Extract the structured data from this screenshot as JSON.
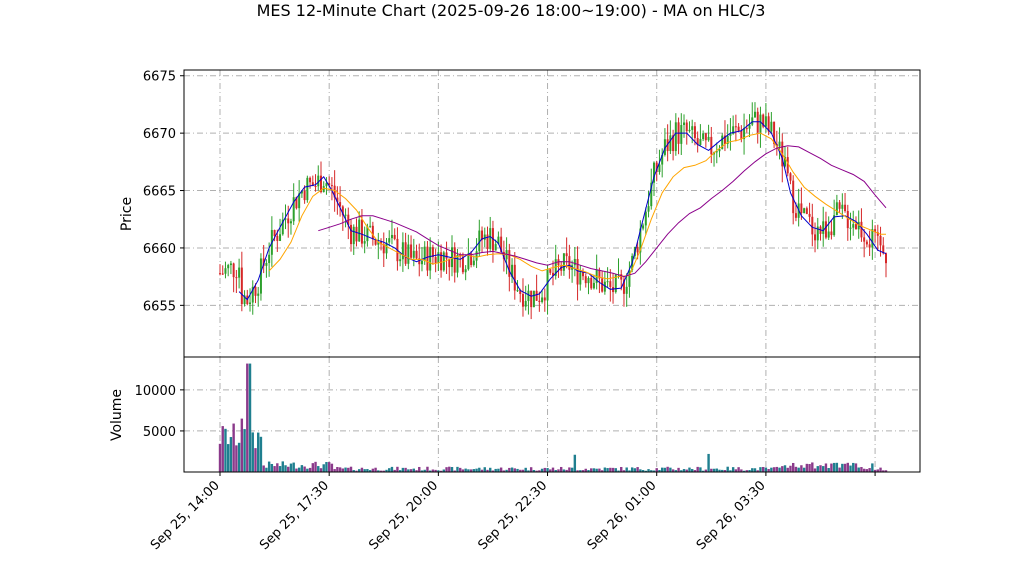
{
  "title": "MES 12-Minute Chart (2025-09-26 18:00~19:00) - MA on HLC/3",
  "colors": {
    "up": "#2ca02c",
    "down": "#d62728",
    "ma_short": "#0000cd",
    "ma_mid": "#ffa500",
    "ma_long": "#8b008b",
    "vol_up": "#1f7f8f",
    "vol_down": "#8b3a8b",
    "grid": "#b0b0b0"
  },
  "chart_data": [
    {
      "type": "candlestick",
      "ylabel": "Price",
      "ylim": [
        6650.5,
        6675.5
      ],
      "yticks": [
        6655,
        6660,
        6665,
        6670,
        6675
      ],
      "xlabels": [
        "Sep 25, 14:00",
        "Sep 25, 17:30",
        "Sep 25, 20:00",
        "Sep 25, 22:30",
        "Sep 26, 01:00",
        "Sep 26, 03:30"
      ],
      "grid": true,
      "moving_averages": [
        {
          "color": "blue",
          "values": [
            [
              7,
              6656.2
            ],
            [
              10,
              6655.5
            ],
            [
              14,
              6657.2
            ],
            [
              18,
              6660
            ],
            [
              22,
              6661.8
            ],
            [
              27,
              6664
            ],
            [
              31,
              6665.3
            ],
            [
              35,
              6665.5
            ],
            [
              38,
              6666.2
            ],
            [
              41,
              6665
            ],
            [
              45,
              6663
            ],
            [
              48,
              6661.5
            ],
            [
              52,
              6661.2
            ],
            [
              56,
              6660.8
            ],
            [
              60,
              6660.5
            ],
            [
              64,
              6660
            ],
            [
              68,
              6659.2
            ],
            [
              72,
              6658.8
            ],
            [
              76,
              6659.2
            ],
            [
              80,
              6659.4
            ],
            [
              84,
              6659.2
            ],
            [
              88,
              6659
            ],
            [
              92,
              6659.6
            ],
            [
              96,
              6660.8
            ],
            [
              99,
              6661
            ],
            [
              102,
              6660.4
            ],
            [
              106,
              6658
            ],
            [
              110,
              6656.3
            ],
            [
              114,
              6655.8
            ],
            [
              117,
              6656
            ],
            [
              121,
              6657.3
            ],
            [
              125,
              6658.3
            ],
            [
              128,
              6658.5
            ],
            [
              131,
              6658
            ],
            [
              135,
              6657.8
            ],
            [
              139,
              6657
            ],
            [
              143,
              6656.4
            ],
            [
              147,
              6656.5
            ],
            [
              151,
              6658.7
            ],
            [
              155,
              6662.5
            ],
            [
              159,
              6666.2
            ],
            [
              163,
              6668.7
            ],
            [
              167,
              6670
            ],
            [
              171,
              6670
            ],
            [
              175,
              6669
            ],
            [
              179,
              6668.5
            ],
            [
              183,
              6669.3
            ],
            [
              187,
              6670
            ],
            [
              191,
              6670.2
            ],
            [
              195,
              6671
            ],
            [
              198,
              6671
            ],
            [
              202,
              6670
            ],
            [
              206,
              6667.8
            ],
            [
              209,
              6664.8
            ],
            [
              213,
              6662.8
            ],
            [
              217,
              6661.8
            ],
            [
              221,
              6661.5
            ],
            [
              225,
              6662.7
            ],
            [
              229,
              6662.8
            ],
            [
              233,
              6662.3
            ],
            [
              237,
              6661.2
            ],
            [
              241,
              6659.8
            ],
            [
              244,
              6659.5
            ]
          ]
        },
        {
          "color": "orange",
          "values": [
            [
              18,
              6658
            ],
            [
              22,
              6659
            ],
            [
              26,
              6660.5
            ],
            [
              30,
              6662.8
            ],
            [
              34,
              6664.5
            ],
            [
              38,
              6665.2
            ],
            [
              42,
              6665
            ],
            [
              46,
              6664.3
            ],
            [
              50,
              6663.3
            ],
            [
              54,
              6661.8
            ],
            [
              58,
              6660.5
            ],
            [
              62,
              6660
            ],
            [
              66,
              6659.5
            ],
            [
              70,
              6659
            ],
            [
              74,
              6659
            ],
            [
              78,
              6658.6
            ],
            [
              82,
              6658.8
            ],
            [
              86,
              6659.2
            ],
            [
              90,
              6659.4
            ],
            [
              94,
              6659.2
            ],
            [
              98,
              6659.4
            ],
            [
              102,
              6659.5
            ],
            [
              106,
              6659.4
            ],
            [
              110,
              6659
            ],
            [
              114,
              6658.4
            ],
            [
              118,
              6658
            ],
            [
              122,
              6658.3
            ],
            [
              126,
              6658.5
            ],
            [
              130,
              6658.2
            ],
            [
              134,
              6657.9
            ],
            [
              138,
              6657.5
            ],
            [
              142,
              6657.3
            ],
            [
              146,
              6657.5
            ],
            [
              150,
              6657.6
            ],
            [
              154,
              6659.8
            ],
            [
              158,
              6662.5
            ],
            [
              162,
              6664.8
            ],
            [
              166,
              6666.2
            ],
            [
              170,
              6667
            ],
            [
              174,
              6667.2
            ],
            [
              178,
              6667.6
            ],
            [
              182,
              6668.5
            ],
            [
              186,
              6669.2
            ],
            [
              190,
              6669.4
            ],
            [
              194,
              6669.8
            ],
            [
              198,
              6670
            ],
            [
              202,
              6669.5
            ],
            [
              206,
              6668.2
            ],
            [
              210,
              6666.6
            ],
            [
              214,
              6665.3
            ],
            [
              218,
              6664.5
            ],
            [
              222,
              6663.8
            ],
            [
              226,
              6663.2
            ],
            [
              230,
              6662.6
            ],
            [
              234,
              6662
            ],
            [
              238,
              6661.6
            ],
            [
              242,
              6661.2
            ],
            [
              244,
              6661.2
            ]
          ]
        },
        {
          "color": "purple",
          "values": [
            [
              36,
              6661.5
            ],
            [
              40,
              6661.8
            ],
            [
              44,
              6662.1
            ],
            [
              48,
              6662.5
            ],
            [
              52,
              6662.8
            ],
            [
              56,
              6662.8
            ],
            [
              60,
              6662.5
            ],
            [
              64,
              6662.2
            ],
            [
              68,
              6661.8
            ],
            [
              72,
              6661.4
            ],
            [
              76,
              6660.8
            ],
            [
              80,
              6660.2
            ],
            [
              84,
              6659.8
            ],
            [
              88,
              6659.4
            ],
            [
              92,
              6659.4
            ],
            [
              96,
              6659.6
            ],
            [
              100,
              6659.7
            ],
            [
              104,
              6659.5
            ],
            [
              108,
              6659.3
            ],
            [
              112,
              6659
            ],
            [
              116,
              6658.7
            ],
            [
              120,
              6658.5
            ],
            [
              124,
              6658.8
            ],
            [
              128,
              6658.8
            ],
            [
              132,
              6658.5
            ],
            [
              136,
              6658.2
            ],
            [
              140,
              6658
            ],
            [
              144,
              6657.8
            ],
            [
              148,
              6657.5
            ],
            [
              152,
              6657.8
            ],
            [
              156,
              6658.8
            ],
            [
              160,
              6660
            ],
            [
              164,
              6661.2
            ],
            [
              168,
              6662.2
            ],
            [
              172,
              6663
            ],
            [
              176,
              6663.5
            ],
            [
              180,
              6664.3
            ],
            [
              184,
              6665
            ],
            [
              188,
              6665.8
            ],
            [
              192,
              6666.7
            ],
            [
              196,
              6667.5
            ],
            [
              200,
              6668.2
            ],
            [
              204,
              6668.7
            ],
            [
              208,
              6668.9
            ],
            [
              212,
              6668.8
            ],
            [
              216,
              6668.3
            ],
            [
              220,
              6667.8
            ],
            [
              224,
              6667.2
            ],
            [
              228,
              6666.8
            ],
            [
              232,
              6666.4
            ],
            [
              236,
              6665.8
            ],
            [
              240,
              6664.6
            ],
            [
              244,
              6663.5
            ]
          ]
        }
      ]
    },
    {
      "type": "bar",
      "ylabel": "Volume",
      "ylim": [
        0,
        14000
      ],
      "yticks": [
        5000,
        10000
      ],
      "grid": true
    }
  ]
}
